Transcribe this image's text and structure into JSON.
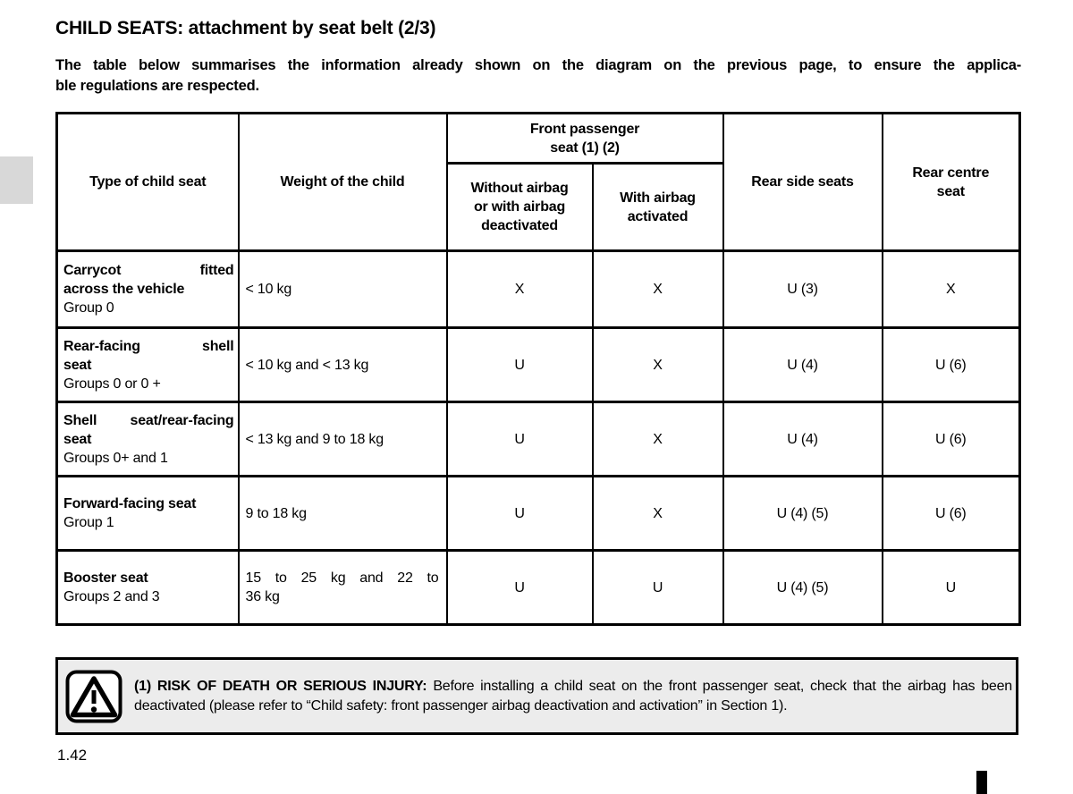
{
  "header": {
    "title": "CHILD SEATS: attachment by seat belt (2/3)"
  },
  "intro": {
    "lines": [
      "The table below summarises the information already shown on the diagram on the previous page, to ensure the applica-",
      "ble regulations are respected."
    ]
  },
  "table": {
    "columns": {
      "type": "Type of child seat",
      "weight": "Weight of the child",
      "front_passenger": "Front passenger\nseat (1) (2)",
      "without_airbag": "Without airbag\nor with airbag\ndeactivated",
      "with_airbag": "With airbag\nactivated",
      "rear_side": "Rear side seats",
      "rear_centre": "Rear centre\nseat"
    },
    "rows": [
      {
        "type_lines": [
          "Carrycot fitted",
          "across the vehicle"
        ],
        "group": "Group 0",
        "weight_lines": [
          "< 10 kg"
        ],
        "values": [
          "X",
          "X",
          "U (3)",
          "X"
        ]
      },
      {
        "type_lines": [
          "Rear-facing shell",
          "seat"
        ],
        "group": "Groups 0 or 0 +",
        "weight_lines": [
          "< 10 kg and < 13 kg"
        ],
        "values": [
          "U",
          "X",
          "U (4)",
          "U (6)"
        ]
      },
      {
        "type_lines": [
          "Shell seat/rear-facing",
          "seat"
        ],
        "group": "Groups 0+ and 1",
        "weight_lines": [
          "< 13 kg and 9 to 18 kg"
        ],
        "values": [
          "U",
          "X",
          "U (4)",
          "U (6)"
        ]
      },
      {
        "type_lines": [
          "Forward-facing seat"
        ],
        "group": "Group 1",
        "weight_lines": [
          "9 to 18 kg"
        ],
        "values": [
          "U",
          "X",
          "U (4) (5)",
          "U (6)"
        ]
      },
      {
        "type_lines": [
          "Booster seat"
        ],
        "group": "Groups 2 and 3",
        "weight_lines": [
          "15 to 25 kg and 22 to",
          "36 kg"
        ],
        "values": [
          "U",
          "U",
          "U (4) (5)",
          "U"
        ]
      }
    ]
  },
  "warning": {
    "lead": "(1) RISK OF DEATH OR SERIOUS INJURY:",
    "body": "Before installing a child seat on the front passenger seat, check that the airbag has been deactivated (please refer to “Child safety: front passenger airbag deactivation and activation” in Section 1)."
  },
  "footer": {
    "page_number": "1.42"
  },
  "colors": {
    "text": "#000000",
    "page_bg": "#ffffff",
    "warning_bg": "#ececec",
    "section_tab_grey": "#d8d8d8"
  }
}
